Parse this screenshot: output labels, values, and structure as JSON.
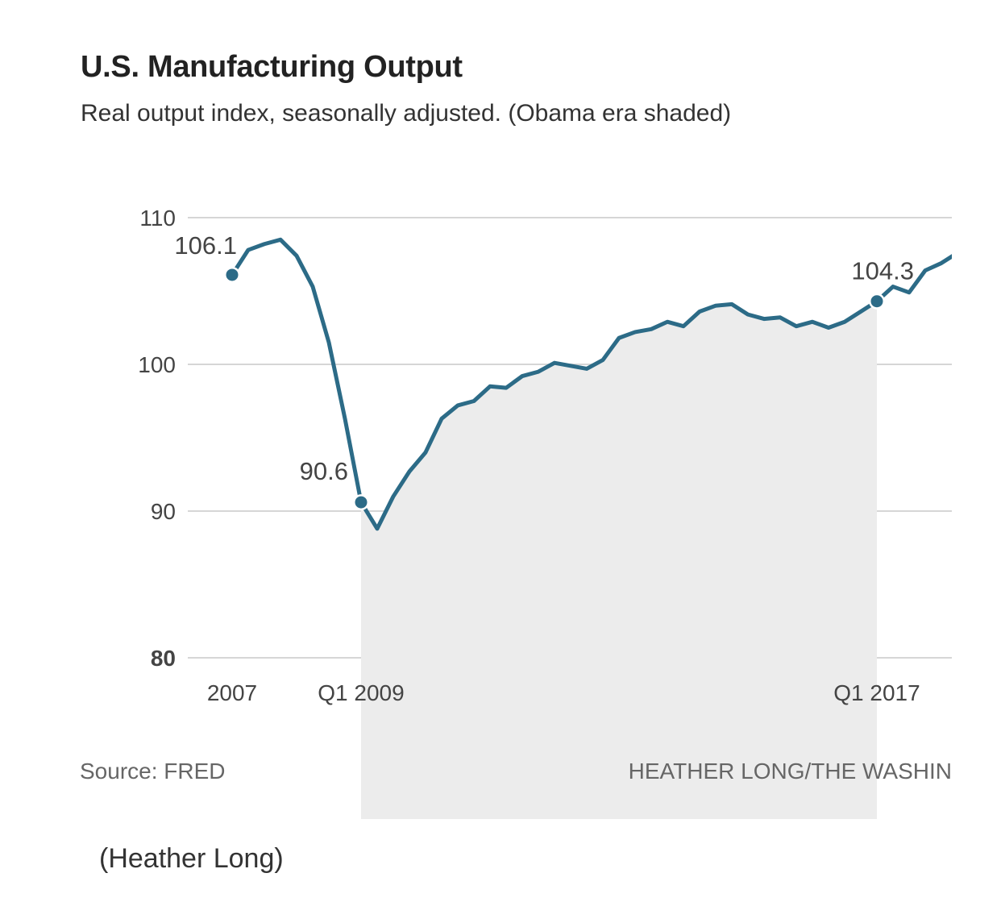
{
  "chart_data": {
    "type": "line",
    "title": "U.S. Manufacturing Output",
    "subtitle": "Real output index, seasonally adjusted. (Obama era shaded)",
    "xlabel": "",
    "ylabel": "",
    "ylim": [
      80,
      110
    ],
    "yticks": [
      110,
      100,
      90,
      80
    ],
    "xticks": [
      {
        "label": "2007",
        "index": 0
      },
      {
        "label": "Q1 2009",
        "index": 8
      },
      {
        "label": "Q1 2017",
        "index": 40
      }
    ],
    "shaded_range": {
      "label": "Obama era",
      "from_index": 8,
      "to_index": 40
    },
    "series": [
      {
        "name": "Real output index",
        "color": "#2c6b87",
        "x": [
          "2007Q1",
          "2007Q2",
          "2007Q3",
          "2007Q4",
          "2008Q1",
          "2008Q2",
          "2008Q3",
          "2008Q4",
          "2009Q1",
          "2009Q2",
          "2009Q3",
          "2009Q4",
          "2010Q1",
          "2010Q2",
          "2010Q3",
          "2010Q4",
          "2011Q1",
          "2011Q2",
          "2011Q3",
          "2011Q4",
          "2012Q1",
          "2012Q2",
          "2012Q3",
          "2012Q4",
          "2013Q1",
          "2013Q2",
          "2013Q3",
          "2013Q4",
          "2014Q1",
          "2014Q2",
          "2014Q3",
          "2014Q4",
          "2015Q1",
          "2015Q2",
          "2015Q3",
          "2015Q4",
          "2016Q1",
          "2016Q2",
          "2016Q3",
          "2016Q4",
          "2017Q1",
          "2017Q2",
          "2017Q3",
          "2017Q4",
          "2018Q1",
          "2018Q2"
        ],
        "values": [
          106.1,
          107.8,
          108.2,
          108.5,
          107.4,
          105.3,
          101.5,
          96.3,
          90.6,
          88.8,
          91.0,
          92.7,
          94.0,
          96.3,
          97.2,
          97.5,
          98.5,
          98.4,
          99.2,
          99.5,
          100.1,
          99.9,
          99.7,
          100.3,
          101.8,
          102.2,
          102.4,
          102.9,
          102.6,
          103.6,
          104.0,
          104.1,
          103.4,
          103.1,
          103.2,
          102.6,
          102.9,
          102.5,
          102.9,
          103.6,
          104.3,
          105.3,
          104.9,
          106.4,
          106.9,
          107.6
        ]
      }
    ],
    "annotations": [
      {
        "label": "106.1",
        "index": 0,
        "value": 106.1
      },
      {
        "label": "90.6",
        "index": 8,
        "value": 90.6
      },
      {
        "label": "104.3",
        "index": 40,
        "value": 104.3
      }
    ],
    "source": "Source: FRED",
    "credit": "HEATHER LONG/THE WASHIN"
  },
  "caption": "(Heather Long)",
  "colors": {
    "line": "#2c6b87",
    "shade": "#ececec",
    "grid": "#d6d6d6"
  }
}
